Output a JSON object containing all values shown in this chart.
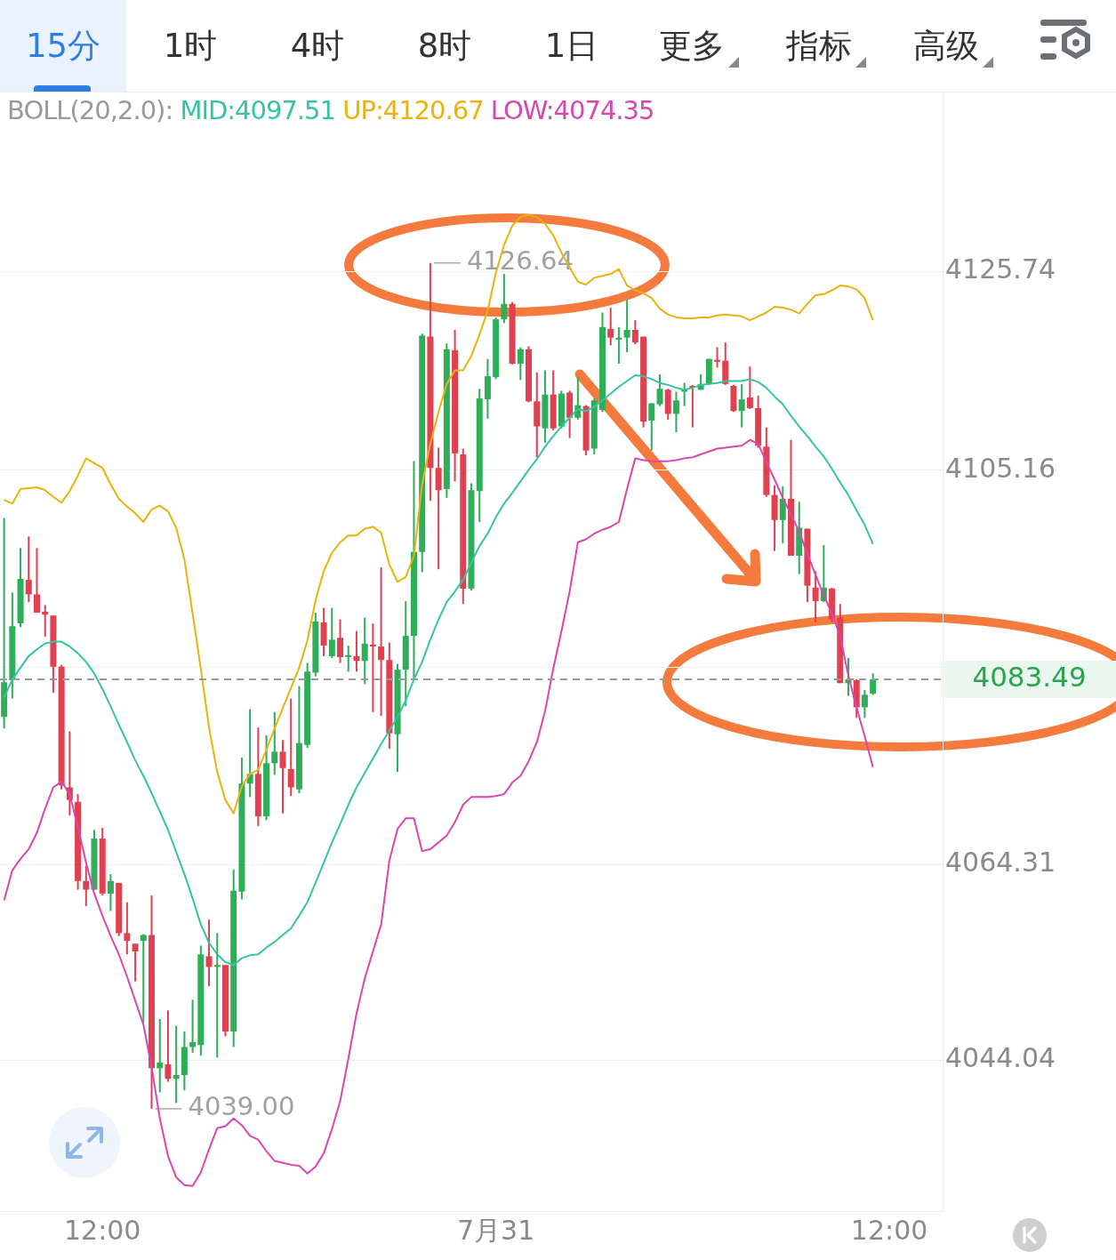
{
  "chart_data": {
    "type": "candlestick",
    "categories": [
      null,
      null,
      null,
      null,
      null,
      null,
      null,
      null,
      null,
      null,
      null,
      null,
      "12:00",
      null,
      null,
      null,
      null,
      null,
      null,
      null,
      null,
      null,
      null,
      null,
      null,
      null,
      null,
      null,
      null,
      null,
      null,
      null,
      null,
      null,
      null,
      null,
      null,
      null,
      null,
      null,
      null,
      null,
      null,
      null,
      null,
      null,
      null,
      null,
      null,
      null,
      null,
      null,
      null,
      null,
      null,
      null,
      null,
      null,
      null,
      null,
      "7月31",
      null,
      null,
      null,
      null,
      null,
      null,
      null,
      null,
      null,
      null,
      null,
      null,
      null,
      null,
      null,
      null,
      null,
      null,
      null,
      null,
      null,
      null,
      null,
      null,
      null,
      null,
      null,
      null,
      null,
      null,
      null,
      null,
      null,
      null,
      null,
      null,
      null,
      null,
      null,
      null,
      null,
      null,
      null,
      null,
      null,
      null,
      null,
      "12:00",
      null,
      null,
      null,
      null,
      null,
      null
    ],
    "ohlc": [
      [
        4079.6,
        4100.2,
        4078.4,
        4083.2
      ],
      [
        4083.4,
        4092.5,
        4081.5,
        4089.0
      ],
      [
        4089.3,
        4097.1,
        4088.9,
        4093.9
      ],
      [
        4093.8,
        4098.3,
        4091.5,
        4092.3
      ],
      [
        4092.3,
        4097.1,
        4090.4,
        4090.4
      ],
      [
        4090.5,
        4091.2,
        4087.9,
        4090.2
      ],
      [
        4090.1,
        4090.1,
        4082.1,
        4084.8
      ],
      [
        4084.8,
        4085.0,
        4072.1,
        4072.5
      ],
      [
        4072.3,
        4078.1,
        4069.4,
        4071.0
      ],
      [
        4070.8,
        4071.6,
        4061.7,
        4062.6
      ],
      [
        4062.6,
        4064.2,
        4060.0,
        4061.7
      ],
      [
        4061.7,
        4067.9,
        4061.7,
        4067.0
      ],
      [
        4067.0,
        4068.1,
        4061.1,
        4061.3
      ],
      [
        4061.3,
        4063.3,
        4059.5,
        4062.6
      ],
      [
        4062.4,
        4062.4,
        4056.9,
        4057.2
      ],
      [
        4057.2,
        4060.4,
        4055.0,
        4056.4
      ],
      [
        4056.1,
        4056.1,
        4052.2,
        4055.3
      ],
      [
        4056.4,
        4057.1,
        4047.9,
        4057.0
      ],
      [
        4057.0,
        4061.1,
        4039.0,
        4043.2
      ],
      [
        4043.2,
        4048.3,
        4040.7,
        4043.8
      ],
      [
        4043.6,
        4049.2,
        4041.8,
        4042.1
      ],
      [
        4042.1,
        4047.6,
        4039.6,
        4042.5
      ],
      [
        4042.5,
        4047.0,
        4040.9,
        4045.4
      ],
      [
        4045.4,
        4050.3,
        4044.8,
        4045.9
      ],
      [
        4045.6,
        4055.9,
        4044.5,
        4055.0
      ],
      [
        4054.8,
        4058.6,
        4051.7,
        4053.7
      ],
      [
        4053.7,
        4057.2,
        4044.3,
        4053.9
      ],
      [
        4053.9,
        4053.9,
        4046.5,
        4047.0
      ],
      [
        4047.0,
        4063.8,
        4045.4,
        4061.6
      ],
      [
        4061.5,
        4075.4,
        4060.7,
        4072.7
      ],
      [
        4072.7,
        4080.4,
        4071.3,
        4073.7
      ],
      [
        4073.7,
        4078.5,
        4068.3,
        4069.3
      ],
      [
        4069.3,
        4077.7,
        4068.9,
        4074.8
      ],
      [
        4074.8,
        4080.1,
        4073.6,
        4076.0
      ],
      [
        4076.0,
        4077.2,
        4069.6,
        4074.3
      ],
      [
        4074.2,
        4081.5,
        4071.4,
        4072.3
      ],
      [
        4072.1,
        4082.8,
        4071.7,
        4076.9
      ],
      [
        4076.7,
        4085.2,
        4076.4,
        4084.3
      ],
      [
        4084.2,
        4090.4,
        4083.8,
        4089.5
      ],
      [
        4089.4,
        4090.9,
        4085.9,
        4087.0
      ],
      [
        4085.9,
        4090.9,
        4085.7,
        4087.6
      ],
      [
        4087.8,
        4089.7,
        4085.2,
        4085.8
      ],
      [
        4085.9,
        4087.0,
        4084.3,
        4086.0
      ],
      [
        4085.9,
        4088.5,
        4084.3,
        4085.4
      ],
      [
        4085.4,
        4089.9,
        4083.0,
        4087.2
      ],
      [
        4087.1,
        4089.3,
        4080.1,
        4086.9
      ],
      [
        4086.9,
        4095.1,
        4079.7,
        4085.5
      ],
      [
        4085.5,
        4087.3,
        4076.3,
        4077.9
      ],
      [
        4077.8,
        4085.1,
        4073.9,
        4084.5
      ],
      [
        4084.5,
        4091.6,
        4080.7,
        4088.0
      ],
      [
        4088.0,
        4106.1,
        4083.5,
        4096.7
      ],
      [
        4096.7,
        4119.3,
        4094.6,
        4119.1
      ],
      [
        4119.0,
        4126.64,
        4102.0,
        4105.4
      ],
      [
        4105.4,
        4107.5,
        4094.9,
        4103.1
      ],
      [
        4103.2,
        4118.3,
        4102.3,
        4117.7
      ],
      [
        4117.6,
        4119.7,
        4104.0,
        4106.9
      ],
      [
        4106.8,
        4107.4,
        4091.3,
        4092.9
      ],
      [
        4092.9,
        4103.8,
        4092.7,
        4103.1
      ],
      [
        4103.0,
        4113.6,
        4099.8,
        4112.6
      ],
      [
        4112.5,
        4116.7,
        4110.5,
        4114.9
      ],
      [
        4114.8,
        4121.0,
        4114.6,
        4120.8
      ],
      [
        4120.8,
        4125.5,
        4120.4,
        4122.4
      ],
      [
        4122.4,
        4122.6,
        4116.1,
        4116.2
      ],
      [
        4116.2,
        4117.9,
        4114.5,
        4117.7
      ],
      [
        4117.7,
        4118.0,
        4112.2,
        4112.3
      ],
      [
        4112.3,
        4115.3,
        4106.5,
        4109.7
      ],
      [
        4109.5,
        4115.5,
        4108.0,
        4113.0
      ],
      [
        4113.0,
        4115.5,
        4109.3,
        4109.5
      ],
      [
        4109.7,
        4113.4,
        4109.5,
        4113.1
      ],
      [
        4113.2,
        4113.4,
        4108.5,
        4110.6
      ],
      [
        4110.6,
        4114.8,
        4110.4,
        4111.9
      ],
      [
        4111.8,
        4111.9,
        4106.7,
        4107.2
      ],
      [
        4107.4,
        4112.6,
        4106.8,
        4112.4
      ],
      [
        4111.4,
        4121.5,
        4111.2,
        4120.0
      ],
      [
        4119.8,
        4122.0,
        4118.1,
        4118.9
      ],
      [
        4118.7,
        4120.0,
        4116.2,
        4118.9
      ],
      [
        4118.9,
        4122.8,
        4117.4,
        4119.7
      ],
      [
        4119.7,
        4120.7,
        4118.2,
        4118.4
      ],
      [
        4119.0,
        4119.0,
        4109.6,
        4110.2
      ],
      [
        4110.3,
        4112.1,
        4107.2,
        4112.1
      ],
      [
        4112.0,
        4115.1,
        4111.8,
        4113.6
      ],
      [
        4113.5,
        4113.6,
        4110.4,
        4111.0
      ],
      [
        4111.0,
        4113.3,
        4109.1,
        4112.4
      ],
      [
        4113.3,
        4114.2,
        4111.8,
        4113.6
      ],
      [
        4113.9,
        4114.0,
        4109.6,
        4113.8
      ],
      [
        4113.5,
        4115.1,
        4113.5,
        4114.1
      ],
      [
        4114.1,
        4116.7,
        4114.0,
        4116.7
      ],
      [
        4116.6,
        4117.9,
        4115.8,
        4116.4
      ],
      [
        4116.5,
        4118.4,
        4114.0,
        4114.1
      ],
      [
        4113.9,
        4114.0,
        4111.2,
        4111.3
      ],
      [
        4111.3,
        4114.1,
        4109.6,
        4112.5
      ],
      [
        4112.7,
        4115.9,
        4111.5,
        4111.6
      ],
      [
        4111.6,
        4112.9,
        4107.5,
        4107.7
      ],
      [
        4107.6,
        4109.6,
        4102.4,
        4102.6
      ],
      [
        4102.6,
        4103.6,
        4096.8,
        4100.0
      ],
      [
        4100.0,
        4103.5,
        4097.6,
        4102.2
      ],
      [
        4102.2,
        4108.3,
        4096.3,
        4096.3
      ],
      [
        4096.3,
        4101.9,
        4094.4,
        4099.2
      ],
      [
        4099.1,
        4099.1,
        4091.5,
        4093.2
      ],
      [
        4093.0,
        4094.7,
        4089.4,
        4091.6
      ],
      [
        4091.6,
        4097.4,
        4091.5,
        4093.0
      ],
      [
        4092.9,
        4093.0,
        4089.4,
        4089.7
      ],
      [
        4089.9,
        4091.3,
        4083.1,
        4083.1
      ],
      [
        4083.1,
        4085.7,
        4081.8,
        4083.5
      ],
      [
        4083.4,
        4083.5,
        4079.5,
        4080.6
      ],
      [
        4080.6,
        4082.4,
        4079.5,
        4081.9
      ],
      [
        4082.0,
        4084.1,
        4081.9,
        4083.49
      ],
      null,
      null,
      null,
      null,
      null,
      null,
      null,
      null
    ],
    "series": [
      {
        "name": "MID:4097.51",
        "type": "line",
        "color": "#35c4a2",
        "values": [
          4081.6,
          4083.5,
          4084.7,
          4085.9,
          4086.6,
          4087.2,
          4087.4,
          4087.4,
          4086.9,
          4086.2,
          4085.3,
          4084.1,
          4082.5,
          4080.7,
          4078.8,
          4077.0,
          4075.1,
          4073.5,
          4071.7,
          4069.8,
          4067.9,
          4065.6,
          4063.3,
          4060.8,
          4058.1,
          4056.2,
          4055.0,
          4054.2,
          4053.9,
          4054.6,
          4054.9,
          4055.0,
          4055.7,
          4056.3,
          4057.0,
          4057.7,
          4059.0,
          4060.4,
          4062.4,
          4064.5,
          4066.6,
          4068.5,
          4070.5,
          4072.3,
          4073.8,
          4075.3,
          4076.8,
          4078.2,
          4079.6,
          4081.3,
          4083.5,
          4085.3,
          4087.6,
          4089.7,
          4091.5,
          4092.6,
          4093.8,
          4095.6,
          4097.3,
          4098.6,
          4100.3,
          4101.7,
          4102.8,
          4104.0,
          4105.2,
          4106.3,
          4107.6,
          4108.7,
          4109.7,
          4110.6,
          4111.5,
          4111.3,
          4111.7,
          4112.4,
          4113.1,
          4113.8,
          4114.4,
          4115.0,
          4114.9,
          4114.6,
          4114.2,
          4114.0,
          4113.7,
          4113.5,
          4113.7,
          4114.0,
          4114.1,
          4114.2,
          4114.4,
          4114.4,
          4114.4,
          4114.6,
          4114.3,
          4113.7,
          4112.8,
          4112.0,
          4110.8,
          4109.7,
          4108.7,
          4107.6,
          4106.6,
          4105.3,
          4103.9,
          4102.6,
          4101.0,
          4099.5,
          4097.5,
          null,
          null,
          null,
          null,
          null,
          null,
          null,
          null
        ]
      },
      {
        "name": "UP:4120.67",
        "type": "line",
        "color": "#e9b20c",
        "values": [
          4102.1,
          4101.7,
          4103.2,
          4103.3,
          4103.4,
          4103.1,
          4102.4,
          4101.8,
          4103.0,
          4104.6,
          4106.4,
          4105.9,
          4105.4,
          4103.7,
          4102.2,
          4101.4,
          4100.7,
          4099.8,
          4101.1,
          4101.5,
          4100.9,
          4099.2,
          4095.9,
          4090.3,
          4084.6,
          4078.5,
          4073.9,
          4071.0,
          4069.6,
          4072.4,
          4073.7,
          4074.1,
          4076.2,
          4078.4,
          4080.5,
          4082.6,
          4084.7,
          4087.5,
          4091.7,
          4094.7,
          4096.6,
          4097.7,
          4098.4,
          4098.4,
          4099.1,
          4099.3,
          4098.7,
          4095.4,
          4093.6,
          4094.1,
          4096.3,
          4103.7,
          4107.9,
          4111.2,
          4114.1,
          4115.5,
          4115.5,
          4117.0,
          4119.2,
          4121.7,
          4125.6,
          4128.5,
          4130.5,
          4131.4,
          4131.6,
          4131.4,
          4130.7,
          4129.5,
          4127.7,
          4126.2,
          4124.7,
          4124.4,
          4125.1,
          4125.3,
          4125.5,
          4126.0,
          4124.3,
          4123.8,
          4123.5,
          4123.0,
          4121.9,
          4121.3,
          4121.0,
          4120.9,
          4120.9,
          4121.0,
          4121.0,
          4121.2,
          4121.3,
          4121.2,
          4121.1,
          4120.7,
          4121.1,
          4121.5,
          4122.1,
          4122.0,
          4121.8,
          4121.4,
          4122.4,
          4123.3,
          4123.4,
          4123.8,
          4124.3,
          4124.2,
          4123.9,
          4123.0,
          4120.7,
          null,
          null,
          null,
          null,
          null,
          null,
          null,
          null
        ]
      },
      {
        "name": "LOW:4074.35",
        "type": "line",
        "color": "#d846b4",
        "values": [
          4060.6,
          4063.7,
          4064.9,
          4065.9,
          4067.6,
          4070.1,
          4072.3,
          4072.9,
          4071.6,
          4068.2,
          4064.5,
          4061.3,
          4059.0,
          4056.9,
          4055.0,
          4052.7,
          4050.2,
          4047.7,
          4043.3,
          4038.0,
          4034.1,
          4031.9,
          4031.1,
          4031.0,
          4032.4,
          4034.8,
          4037.0,
          4037.2,
          4038.0,
          4037.3,
          4036.2,
          4035.8,
          4034.6,
          4033.6,
          4033.4,
          4033.2,
          4033.1,
          4032.3,
          4033.0,
          4034.4,
          4036.9,
          4039.8,
          4044.2,
          4048.9,
          4052.5,
          4055.3,
          4058.1,
          4064.7,
          4068.0,
          4069.1,
          4069.1,
          4065.7,
          4065.9,
          4066.6,
          4067.3,
          4068.7,
          4070.5,
          4071.3,
          4071.3,
          4071.3,
          4071.4,
          4071.6,
          4072.8,
          4073.5,
          4075.0,
          4077.0,
          4080.2,
          4084.6,
          4088.5,
          4092.6,
          4097.7,
          4098.0,
          4098.6,
          4099.0,
          4099.3,
          4099.8,
          4103.2,
          4106.4,
          4106.2,
          4106.1,
          4106.1,
          4106.1,
          4106.2,
          4106.4,
          4106.5,
          4106.8,
          4107.1,
          4107.4,
          4107.5,
          4107.6,
          4107.7,
          4108.3,
          4107.9,
          4106.0,
          4104.2,
          4102.3,
          4100.6,
          4098.8,
          4096.5,
          4094.3,
          4092.2,
          4090.3,
          4088.0,
          4083.9,
          4080.6,
          4077.6,
          4074.4,
          null,
          null,
          null,
          null,
          null,
          null,
          null,
          null
        ]
      }
    ],
    "legend_title": "BOLL(20,2.0):",
    "legend": "top",
    "ylim": [
      4028.4,
      4144.3
    ],
    "yticks": [
      4125.74,
      4105.16,
      {
        "value": 4084.74,
        "label": null
      },
      4064.31,
      4044.04
    ],
    "grid": "y",
    "ref_lines": [
      {
        "axis": "y",
        "value": 4083.49,
        "label": "4083.49",
        "color": "#9a9a9a",
        "line_style": "dashed"
      }
    ],
    "annotations": [
      "15分",
      "1时",
      "4时",
      "8时",
      "1日",
      "更多",
      "指标",
      "高级",
      "4126.64",
      "4039.00"
    ]
  }
}
